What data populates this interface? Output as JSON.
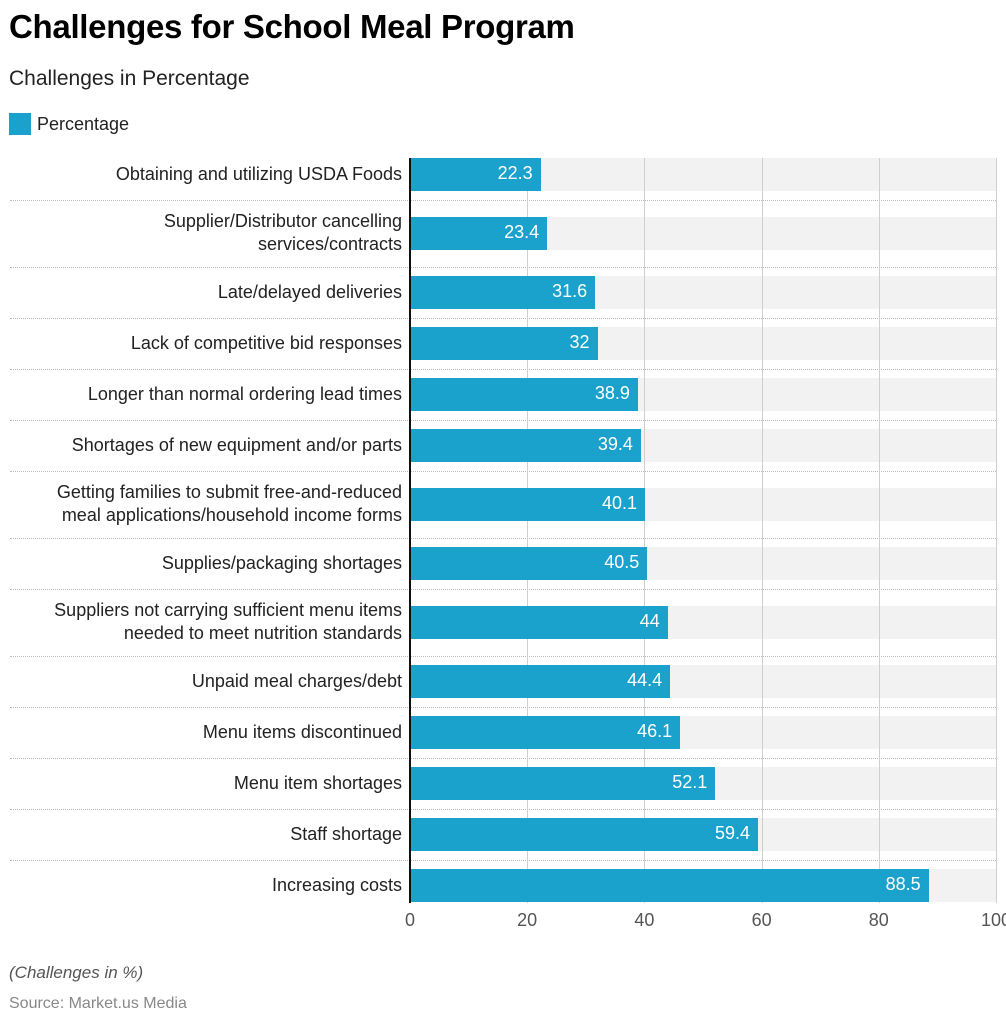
{
  "chart_data": {
    "type": "bar",
    "orientation": "horizontal",
    "title": "Challenges for School Meal Program",
    "subtitle": "Challenges in Percentage",
    "legend": {
      "entries": [
        "Percentage"
      ],
      "placement": "top-left"
    },
    "categories": [
      "Obtaining and utilizing USDA Foods",
      "Supplier/Distributor cancelling\nservices/contracts",
      "Late/delayed deliveries",
      "Lack of competitive bid responses",
      "Longer than normal ordering lead times",
      "Shortages of new equipment and/or parts",
      "Getting families to submit free-and-reduced\nmeal applications/household income forms",
      "Supplies/packaging shortages",
      "Suppliers not carrying sufficient menu items\nneeded to meet nutrition standards",
      "Unpaid meal charges/debt",
      "Menu items discontinued",
      "Menu item shortages",
      "Staff shortage",
      "Increasing costs"
    ],
    "series": [
      {
        "name": "Percentage",
        "values": [
          22.3,
          23.4,
          31.6,
          32,
          38.9,
          39.4,
          40.1,
          40.5,
          44,
          44.4,
          46.1,
          52.1,
          59.4,
          88.5
        ],
        "labels": [
          "22.3",
          "23.4",
          "31.6",
          "32",
          "38.9",
          "39.4",
          "40.1",
          "40.5",
          "44",
          "44.4",
          "46.1",
          "52.1",
          "59.4",
          "88.5"
        ]
      }
    ],
    "xlim": [
      0,
      100
    ],
    "xticks": [
      "0",
      "20",
      "40",
      "60",
      "80",
      "100"
    ],
    "grid": true,
    "colors": {
      "bar": "#1aa1cc",
      "band": "#f2f2f2"
    },
    "note": "(Challenges in %)",
    "source": "Source: Market.us Media"
  }
}
